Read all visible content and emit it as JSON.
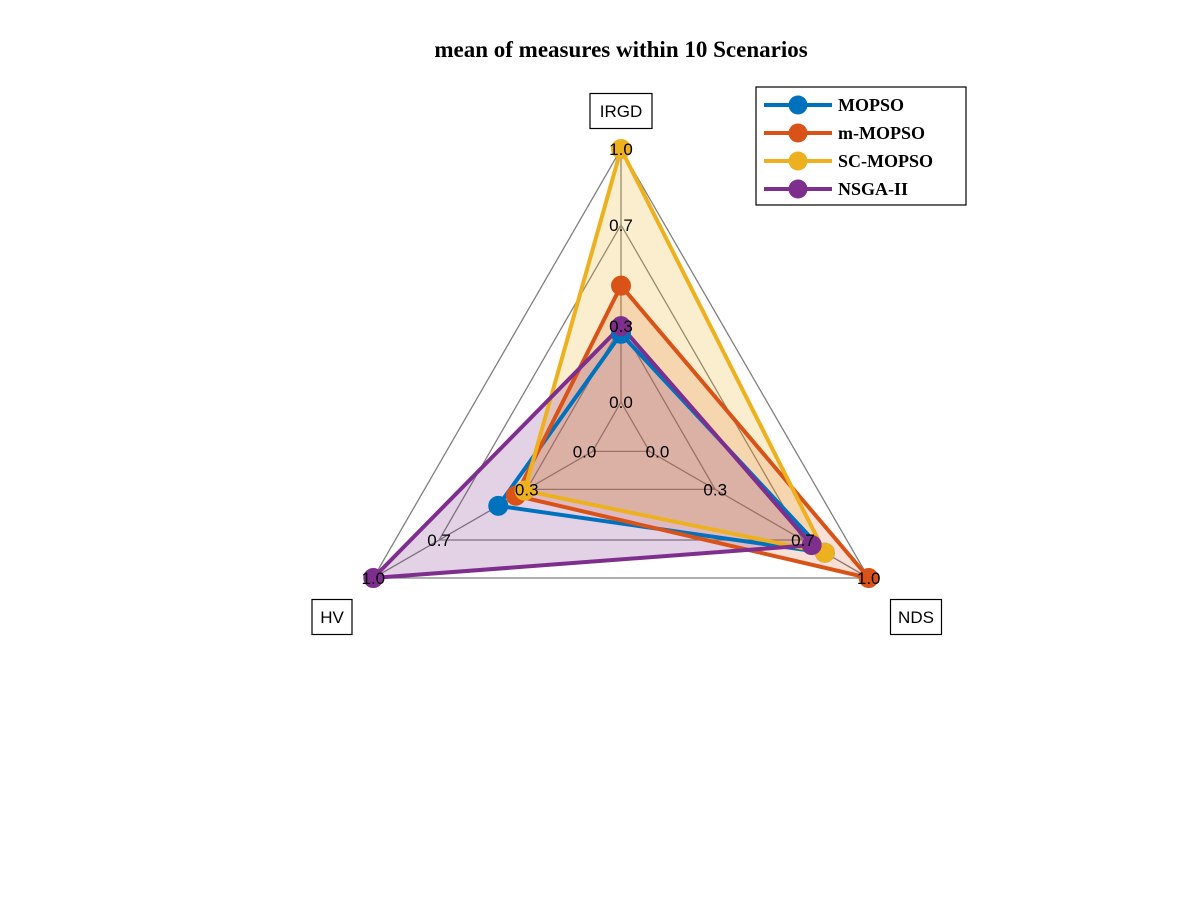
{
  "chart_data": {
    "type": "radar",
    "title": "mean of measures within 10 Scenarios",
    "axes": [
      "IRGD",
      "NDS",
      "HV"
    ],
    "axis_ticks": [
      "0.0",
      "0.3",
      "0.7",
      "1.0"
    ],
    "series": [
      {
        "name": "MOPSO",
        "color": "#0072BD",
        "fill_opacity": 0.0,
        "values": [
          0.27,
          0.8,
          0.43
        ]
      },
      {
        "name": "m-MOPSO",
        "color": "#D95319",
        "fill_opacity": 0.18,
        "values": [
          0.46,
          1.0,
          0.35
        ]
      },
      {
        "name": "SC-MOPSO",
        "color": "#EDB120",
        "fill_opacity": 0.22,
        "values": [
          1.0,
          0.8,
          0.31
        ]
      },
      {
        "name": "NSGA-II",
        "color": "#7E2F8E",
        "fill_opacity": 0.22,
        "values": [
          0.3,
          0.74,
          1.0
        ]
      }
    ],
    "legend_position": "top-right"
  }
}
